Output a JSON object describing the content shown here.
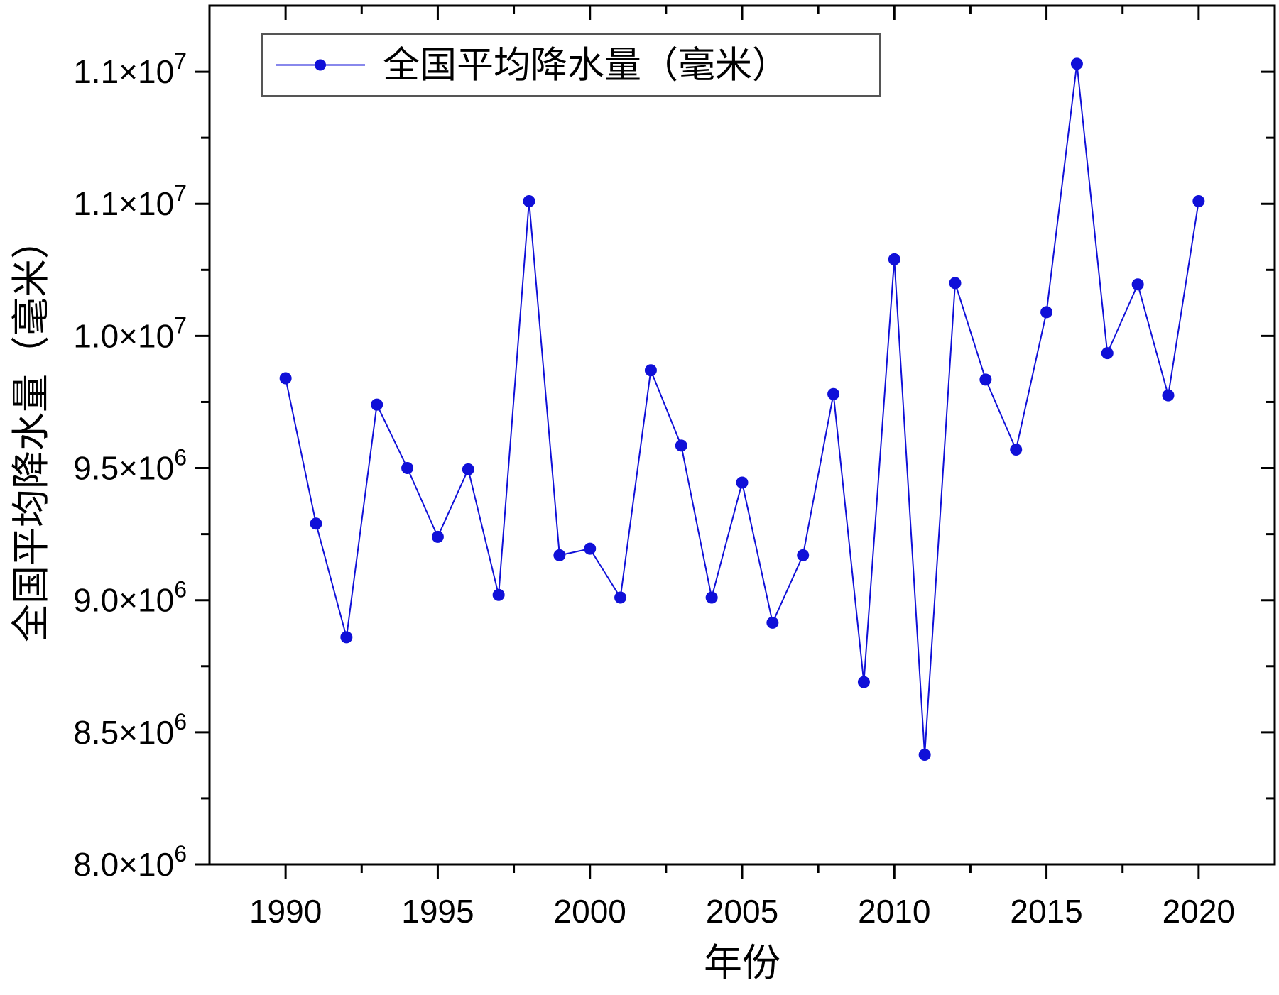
{
  "chart_data": {
    "type": "line",
    "title": "",
    "xlabel": "年份",
    "ylabel": "全国平均降水量（毫米）",
    "xlim": [
      1987.5,
      2022.5
    ],
    "ylim": [
      8000000,
      11250000
    ],
    "x_ticks": [
      1990,
      1995,
      2000,
      2005,
      2010,
      2015,
      2020
    ],
    "x_tick_labels": [
      "1990",
      "1995",
      "2000",
      "2005",
      "2010",
      "2015",
      "2020"
    ],
    "y_ticks": [
      8000000,
      8500000,
      9000000,
      9500000,
      10000000,
      10500000,
      11000000
    ],
    "y_tick_labels": [
      {
        "mantissa": "8.0×10",
        "exp": "6"
      },
      {
        "mantissa": "8.5×10",
        "exp": "6"
      },
      {
        "mantissa": "9.0×10",
        "exp": "6"
      },
      {
        "mantissa": "9.5×10",
        "exp": "6"
      },
      {
        "mantissa": "1.0×10",
        "exp": "7"
      },
      {
        "mantissa": "1.1×10",
        "exp": "7"
      },
      {
        "mantissa": "1.1×10",
        "exp": "7"
      }
    ],
    "grid": false,
    "legend_position": "top-left",
    "series": [
      {
        "name": "全国平均降水量（毫米）",
        "color": "#1010d8",
        "marker": "circle",
        "x": [
          1990,
          1991,
          1992,
          1993,
          1994,
          1995,
          1996,
          1997,
          1998,
          1999,
          2000,
          2001,
          2002,
          2003,
          2004,
          2005,
          2006,
          2007,
          2008,
          2009,
          2010,
          2011,
          2012,
          2013,
          2014,
          2015,
          2016,
          2017,
          2018,
          2019,
          2020
        ],
        "values": [
          9840000,
          9290000,
          8860000,
          9740000,
          9500000,
          9240000,
          9495000,
          9020000,
          10510000,
          9170000,
          9195000,
          9010000,
          9870000,
          9585000,
          9010000,
          9445000,
          8915000,
          9170000,
          9780000,
          8690000,
          10290000,
          8415000,
          10200000,
          9835000,
          9570000,
          10090000,
          11030000,
          9935000,
          10195000,
          9775000,
          10510000
        ]
      }
    ]
  }
}
